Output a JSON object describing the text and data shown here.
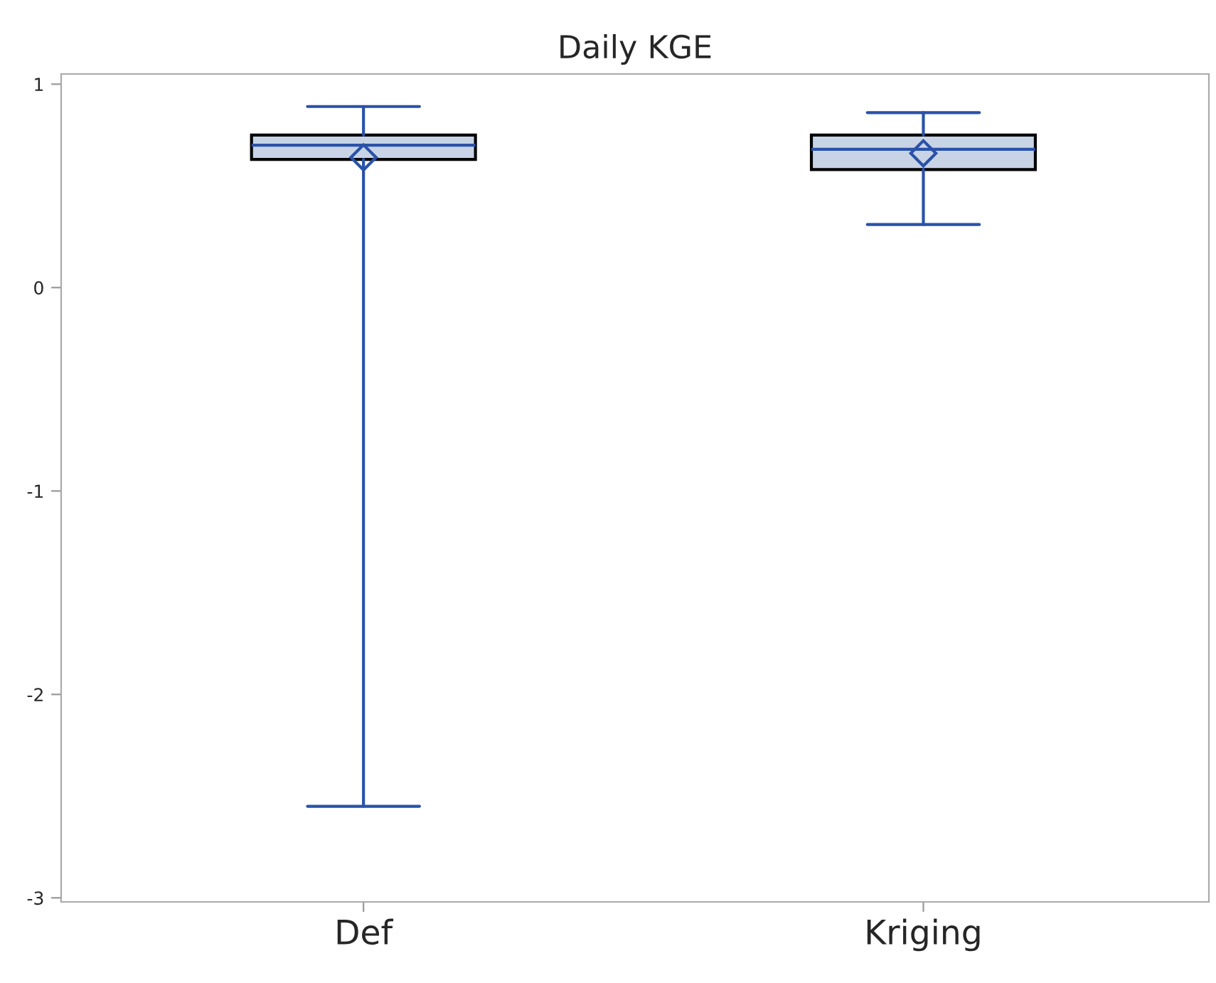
{
  "chart_data": {
    "type": "box",
    "title": "Daily KGE",
    "categories": [
      "Def",
      "Kriging"
    ],
    "boxes": [
      {
        "low": -2.55,
        "q1": 0.63,
        "median": 0.7,
        "q3": 0.75,
        "high": 0.89,
        "mean": 0.64
      },
      {
        "low": 0.31,
        "q1": 0.58,
        "median": 0.68,
        "q3": 0.75,
        "high": 0.86,
        "mean": 0.66
      }
    ],
    "color": "#c8d4e6",
    "ylim": [
      -3.02,
      1.05
    ],
    "yticks": [
      -3,
      -2,
      -1,
      0,
      1
    ],
    "grid": false
  }
}
